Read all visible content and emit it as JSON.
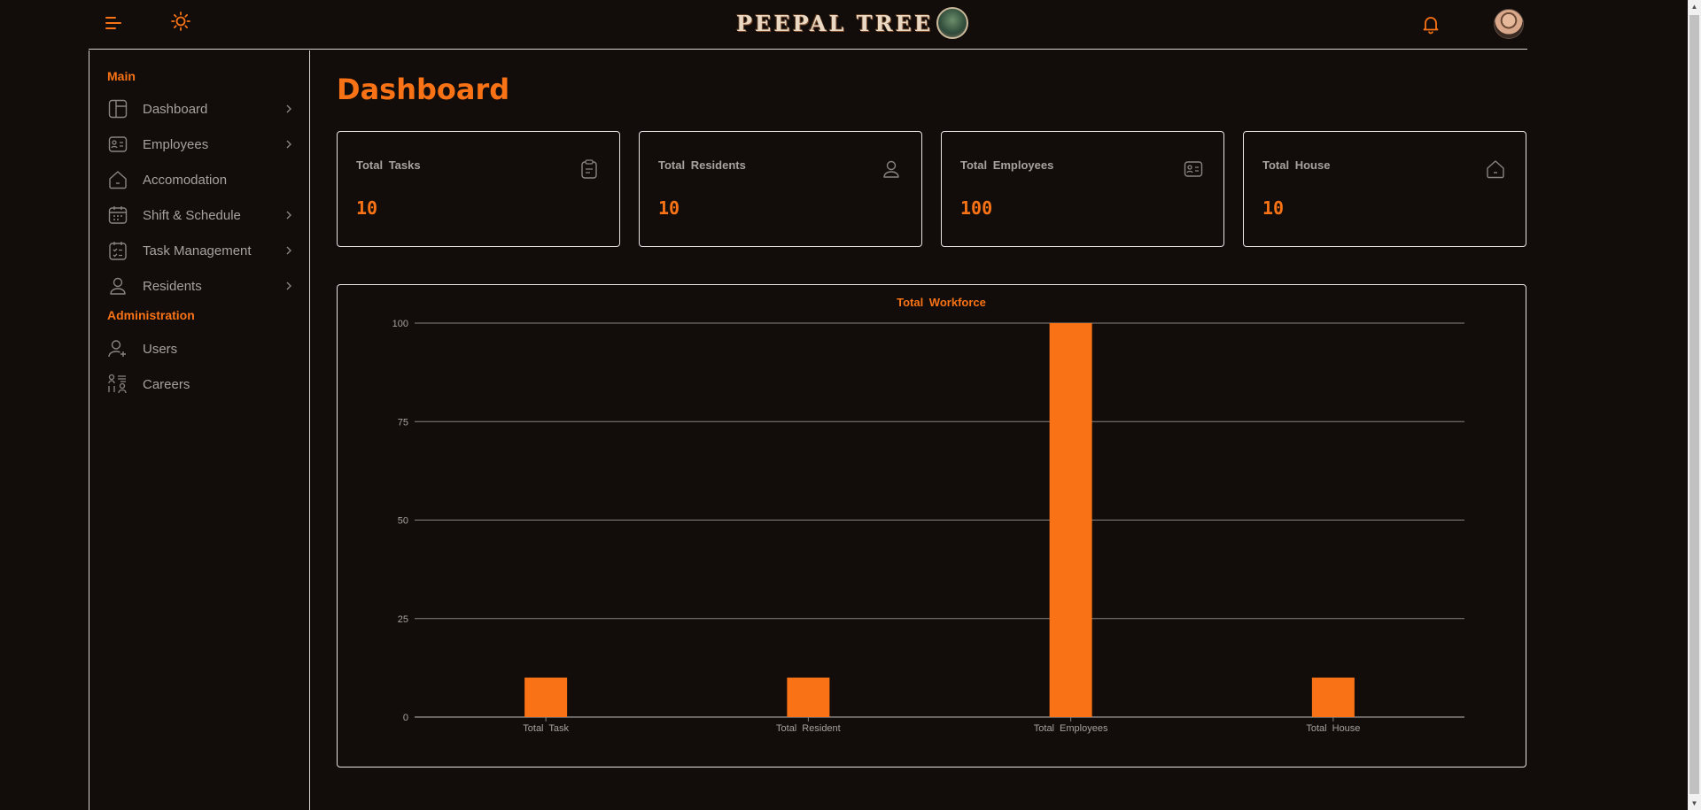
{
  "header": {
    "logo_text": "PEEPAL TREE",
    "menu_icon": "menu-icon",
    "theme_icon": "sun-icon",
    "bell_icon": "bell-icon",
    "accent": "#f97316"
  },
  "sidebar": {
    "main_title": "Main",
    "admin_title": "Administration",
    "items": [
      {
        "label": "Dashboard",
        "icon": "dashboard-icon",
        "chevron": true
      },
      {
        "label": "Employees",
        "icon": "id-card-icon",
        "chevron": true
      },
      {
        "label": "Accomodation",
        "icon": "home-icon",
        "chevron": false
      },
      {
        "label": "Shift  &  Schedule",
        "icon": "calendar-icon",
        "chevron": true
      },
      {
        "label": "Task Management",
        "icon": "checklist-icon",
        "chevron": true
      },
      {
        "label": "Residents",
        "icon": "user-icon",
        "chevron": true
      }
    ],
    "admin_items": [
      {
        "label": "Users",
        "icon": "user-plus-icon"
      },
      {
        "label": "Careers",
        "icon": "careers-icon"
      }
    ]
  },
  "main": {
    "title": "Dashboard",
    "cards": [
      {
        "label": "Total  Tasks",
        "value": "10",
        "icon": "clipboard-icon"
      },
      {
        "label": "Total  Residents",
        "value": "10",
        "icon": "user-icon"
      },
      {
        "label": "Total  Employees",
        "value": "100",
        "icon": "id-card-icon"
      },
      {
        "label": "Total  House",
        "value": "10",
        "icon": "home-icon"
      }
    ]
  },
  "chart_data": {
    "type": "bar",
    "title": "Total  Workforce",
    "categories": [
      "Total  Task",
      "Total  Resident",
      "Total  Employees",
      "Total  House"
    ],
    "values": [
      10,
      10,
      100,
      10
    ],
    "ylim": [
      0,
      100
    ],
    "yticks": [
      0,
      25,
      50,
      75,
      100
    ],
    "grid": true,
    "bar_color": "#f97316"
  }
}
